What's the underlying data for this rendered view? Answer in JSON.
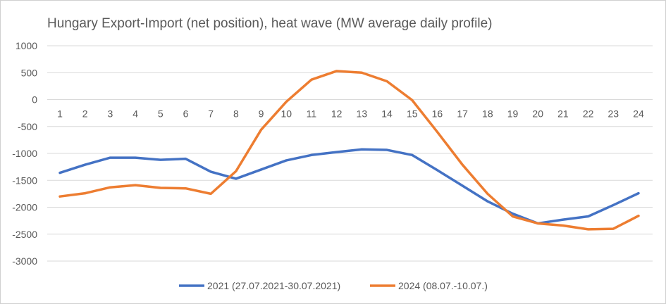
{
  "chart_data": {
    "type": "line",
    "title": "Hungary Export-Import (net position), heat wave (MW average daily profile)",
    "xlabel": "",
    "ylabel": "",
    "categories": [
      "1",
      "2",
      "3",
      "4",
      "5",
      "6",
      "7",
      "8",
      "9",
      "10",
      "11",
      "12",
      "13",
      "14",
      "15",
      "16",
      "17",
      "18",
      "19",
      "20",
      "21",
      "22",
      "23",
      "24"
    ],
    "ylim": [
      -3000,
      1000
    ],
    "yticks": [
      "1000",
      "500",
      "0",
      "-500",
      "-1000",
      "-1500",
      "-2000",
      "-2500",
      "-3000"
    ],
    "grid": true,
    "legend": "bottom",
    "series": [
      {
        "name": "2021 (27.07.2021-30.07.2021)",
        "color": "#4472c4",
        "values": [
          -1360,
          -1210,
          -1080,
          -1080,
          -1120,
          -1100,
          -1340,
          -1470,
          -1300,
          -1130,
          -1030,
          -975,
          -925,
          -935,
          -1030,
          -1310,
          -1600,
          -1890,
          -2120,
          -2300,
          -2230,
          -2170,
          -1960,
          -1740
        ]
      },
      {
        "name": "2024 (08.07.-10.07.)",
        "color": "#ed7d31",
        "values": [
          -1800,
          -1740,
          -1630,
          -1590,
          -1640,
          -1650,
          -1750,
          -1330,
          -560,
          -40,
          370,
          530,
          500,
          340,
          -10,
          -600,
          -1210,
          -1750,
          -2170,
          -2300,
          -2340,
          -2410,
          -2400,
          -2160
        ]
      }
    ]
  }
}
